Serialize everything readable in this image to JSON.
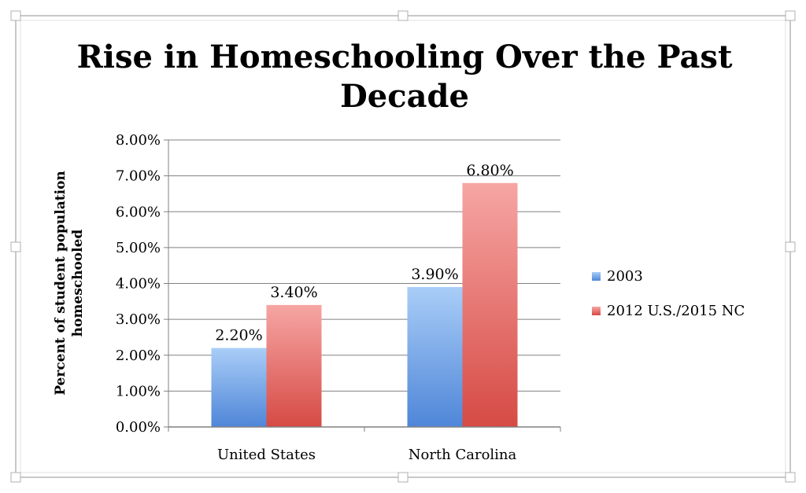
{
  "chart_data": {
    "type": "bar",
    "title_lines": [
      "Rise in Homeschooling Over the Past",
      "Decade"
    ],
    "ylabel_lines": [
      "Percent of student population",
      "homeschooled"
    ],
    "xlabel": "",
    "categories": [
      "United States",
      "North Carolina"
    ],
    "series": [
      {
        "name": "2003",
        "values": [
          2.2,
          3.9
        ],
        "data_labels": [
          "2.20%",
          "3.90%"
        ],
        "color_top": "#a9cdf7",
        "color_bottom": "#4f86d8"
      },
      {
        "name": "2012 U.S./2015 NC",
        "values": [
          3.4,
          6.8
        ],
        "data_labels": [
          "3.40%",
          "6.80%"
        ],
        "color_top": "#f6a6a4",
        "color_bottom": "#d64a44"
      }
    ],
    "ylim": [
      0,
      8
    ],
    "yticks": [
      0,
      1,
      2,
      3,
      4,
      5,
      6,
      7,
      8
    ],
    "ytick_labels": [
      "0.00%",
      "1.00%",
      "2.00%",
      "3.00%",
      "4.00%",
      "5.00%",
      "6.00%",
      "7.00%",
      "8.00%"
    ],
    "grid": true,
    "legend_position": "right"
  }
}
